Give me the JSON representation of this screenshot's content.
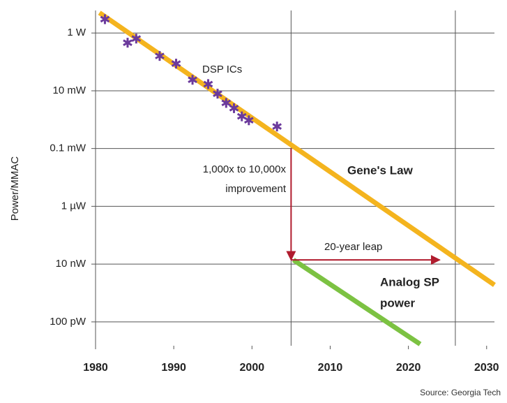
{
  "chart_data": {
    "type": "scatter",
    "ylabel": "Power/MMAC",
    "log_y": true,
    "xlim": [
      1980,
      2031
    ],
    "ylim": [
      1.5e-11,
      6
    ],
    "xticks": [
      1980,
      1990,
      2000,
      2010,
      2020,
      2030
    ],
    "yticks": [
      {
        "value": 1,
        "label": "1 W"
      },
      {
        "value": 0.01,
        "label": "10 mW"
      },
      {
        "value": 0.0001,
        "label": "0.1 mW"
      },
      {
        "value": 1e-06,
        "label": "1 µW"
      },
      {
        "value": 1e-08,
        "label": "10 nW"
      },
      {
        "value": 1e-10,
        "label": "100 pW"
      }
    ],
    "grid": true,
    "vlines": [
      2005,
      2026
    ],
    "series": [
      {
        "name": "DSP ICs",
        "type": "scatter",
        "color": "#6b3a9c",
        "x": [
          1981.2,
          1984.1,
          1985.2,
          1988.2,
          1990.3,
          1992.4,
          1994.4,
          1995.6,
          1996.7,
          1997.7,
          1998.7,
          1999.6,
          2003.2
        ],
        "values": [
          3.0,
          0.46,
          0.64,
          0.16,
          0.087,
          0.024,
          0.017,
          0.0079,
          0.0038,
          0.0025,
          0.0013,
          0.00095,
          0.00058
        ]
      },
      {
        "name": "Gene's Law",
        "type": "line",
        "color": "#f4b41e",
        "x": [
          1980.5,
          2031
        ],
        "values": [
          5,
          1.9e-09
        ]
      },
      {
        "name": "Analog SP power",
        "type": "line",
        "color": "#7cc242",
        "x": [
          2005.3,
          2021.5
        ],
        "values": [
          1.4e-08,
          1.7e-11
        ]
      }
    ],
    "arrows": [
      {
        "x": [
          2005,
          2005
        ],
        "y": [
          0.0001,
          1.4e-08
        ]
      },
      {
        "x": [
          2005,
          2024
        ],
        "y": [
          1.4e-08,
          1.4e-08
        ]
      }
    ],
    "annotations": [
      "1,000x to 10,000x",
      "improvement",
      "20-year leap",
      "Analog SP",
      "power"
    ],
    "source": "Source: Georgia Tech"
  }
}
